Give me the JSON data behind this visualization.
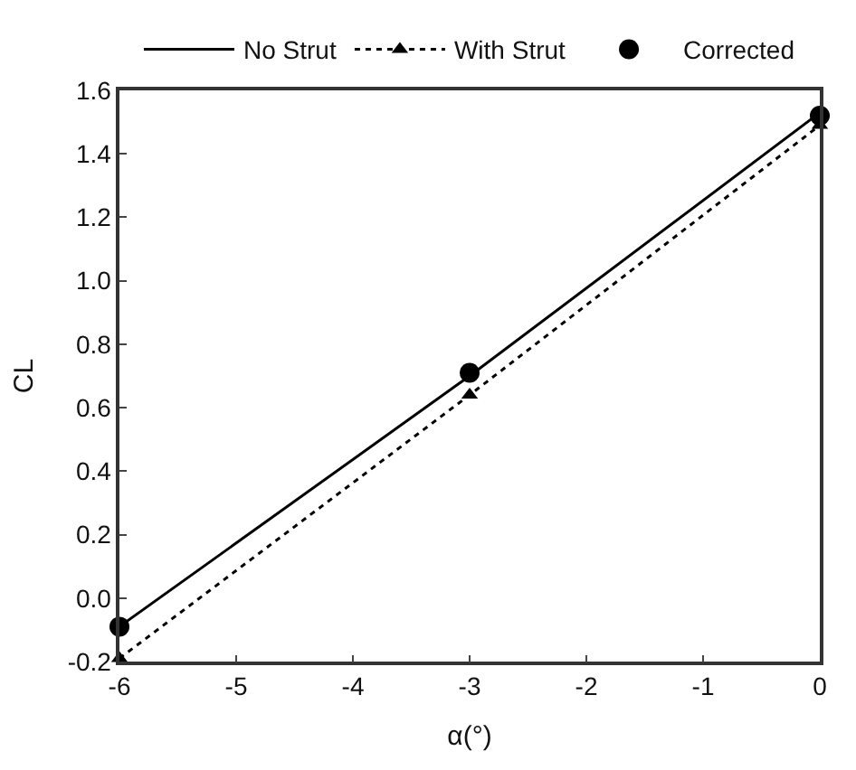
{
  "chart_data": {
    "type": "line",
    "x": [
      -6,
      -3,
      0
    ],
    "xlabel": "α(°)",
    "ylabel": "CL",
    "xlim": [
      -6,
      0
    ],
    "xticks": [
      -6,
      -5,
      -4,
      -3,
      -2,
      -1,
      0
    ],
    "ylim": [
      -0.2,
      1.6
    ],
    "yticks": [
      {
        "value": -0.2,
        "label": "-0.2"
      },
      {
        "value": 0,
        "label": "0.0"
      },
      {
        "value": 0.2,
        "label": "0.2"
      },
      {
        "value": 0.4,
        "label": "0.4"
      },
      {
        "value": 0.6,
        "label": "0.6"
      },
      {
        "value": 0.8,
        "label": "0.8"
      },
      {
        "value": 1.0,
        "label": "1.0"
      },
      {
        "value": 1.2,
        "label": "1.2"
      },
      {
        "value": 1.4,
        "label": "1.4"
      },
      {
        "value": 1.6,
        "label": "1.6"
      }
    ],
    "legend": "top",
    "series": [
      {
        "name": "No Strut",
        "color": "#000000",
        "marker": "none",
        "line_style": "solid",
        "values": [
          -0.09,
          0.7,
          1.53
        ]
      },
      {
        "name": "With Strut",
        "color": "#000000",
        "marker": "triangle",
        "line_style": "dotted",
        "values": [
          -0.19,
          0.64,
          1.49
        ]
      },
      {
        "name": "Corrected",
        "color": "#000000",
        "type": "scatter",
        "marker": "circle",
        "values": [
          -0.09,
          0.71,
          1.52
        ]
      }
    ]
  }
}
